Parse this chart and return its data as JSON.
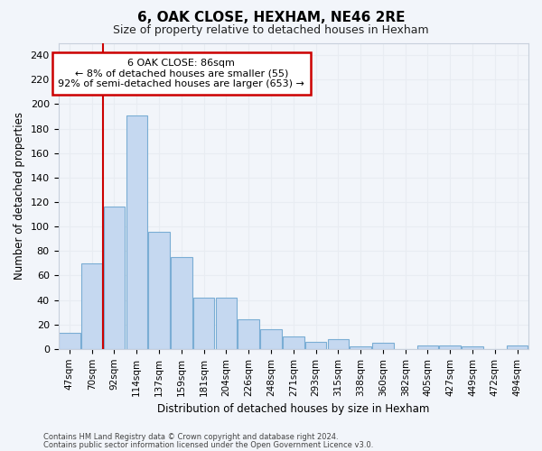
{
  "title": "6, OAK CLOSE, HEXHAM, NE46 2RE",
  "subtitle": "Size of property relative to detached houses in Hexham",
  "xlabel": "Distribution of detached houses by size in Hexham",
  "ylabel": "Number of detached properties",
  "bar_color": "#c5d8f0",
  "bar_edge_color": "#7aadd4",
  "annotation_box_color": "#ffffff",
  "annotation_border_color": "#cc0000",
  "vline_color": "#cc0000",
  "categories": [
    "47sqm",
    "70sqm",
    "92sqm",
    "114sqm",
    "137sqm",
    "159sqm",
    "181sqm",
    "204sqm",
    "226sqm",
    "248sqm",
    "271sqm",
    "293sqm",
    "315sqm",
    "338sqm",
    "360sqm",
    "382sqm",
    "405sqm",
    "427sqm",
    "449sqm",
    "472sqm",
    "494sqm"
  ],
  "values": [
    13,
    70,
    116,
    191,
    96,
    75,
    42,
    42,
    24,
    16,
    10,
    6,
    8,
    2,
    5,
    0,
    3,
    3,
    2,
    0,
    3
  ],
  "ylim": [
    0,
    250
  ],
  "yticks": [
    0,
    20,
    40,
    60,
    80,
    100,
    120,
    140,
    160,
    180,
    200,
    220,
    240
  ],
  "vline_x": 2.0,
  "annotation_title": "6 OAK CLOSE: 86sqm",
  "annotation_line1": "← 8% of detached houses are smaller (55)",
  "annotation_line2": "92% of semi-detached houses are larger (653) →",
  "footer1": "Contains HM Land Registry data © Crown copyright and database right 2024.",
  "footer2": "Contains public sector information licensed under the Open Government Licence v3.0.",
  "background_color": "#f2f5fa",
  "grid_color": "#e8ecf2",
  "title_fontsize": 11,
  "subtitle_fontsize": 9,
  "axis_fontsize": 8.5,
  "tick_fontsize": 7.5,
  "footer_fontsize": 6.0
}
